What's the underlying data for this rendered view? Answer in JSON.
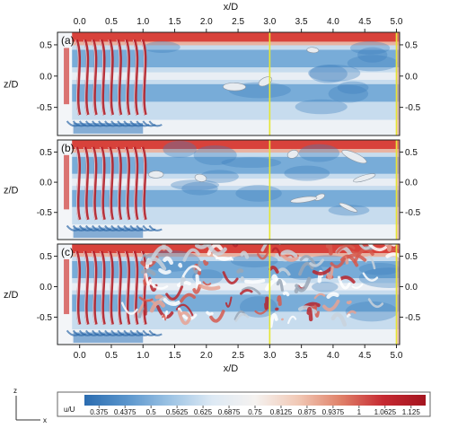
{
  "chart_data": {
    "type": "heatmap",
    "description_kind": "flow-visualization panels",
    "panels": [
      {
        "label": "(a)",
        "vortex_density": "low",
        "downstream_structures": "few"
      },
      {
        "label": "(b)",
        "vortex_density": "low",
        "downstream_structures": "isolated"
      },
      {
        "label": "(c)",
        "vortex_density": "high",
        "downstream_structures": "dense"
      }
    ],
    "xlabel": "x/D",
    "ylabel": "z/D",
    "xlim": [
      -0.35,
      5.05
    ],
    "ylim": [
      -0.95,
      0.7
    ],
    "x_ticks": [
      "0.0",
      "0.5",
      "1.0",
      "1.5",
      "2.0",
      "2.5",
      "3.0",
      "3.5",
      "4.0",
      "4.5",
      "5.0"
    ],
    "x_tick_values": [
      0,
      0.5,
      1,
      1.5,
      2,
      2.5,
      3,
      3.5,
      4,
      4.5,
      5
    ],
    "y_ticks": [
      "0.5",
      "0.0",
      "-0.5"
    ],
    "y_tick_values": [
      0.5,
      0,
      -0.5
    ],
    "vertical_lines": [
      3.0,
      5.0
    ],
    "vertical_line_color": "#e5e533",
    "colorbar": {
      "label": "u/U",
      "ticks": [
        "0.375",
        "0.4375",
        "0.5",
        "0.5625",
        "0.625",
        "0.6875",
        "0.75",
        "0.8125",
        "0.875",
        "0.9375",
        "1",
        "1.0625",
        "1.125"
      ],
      "tick_values": [
        0.375,
        0.4375,
        0.5,
        0.5625,
        0.625,
        0.6875,
        0.75,
        0.8125,
        0.875,
        0.9375,
        1,
        1.0625,
        1.125
      ],
      "range": [
        0.34,
        1.16
      ],
      "colors": [
        "#2b6cb0",
        "#5a95cc",
        "#9cc3e4",
        "#dde9f4",
        "#f5f2f0",
        "#f1c9b6",
        "#e0826a",
        "#c62a32",
        "#a4141f"
      ]
    },
    "axis_indicator": {
      "vertical": "z",
      "horizontal": "x"
    },
    "grid": false
  }
}
